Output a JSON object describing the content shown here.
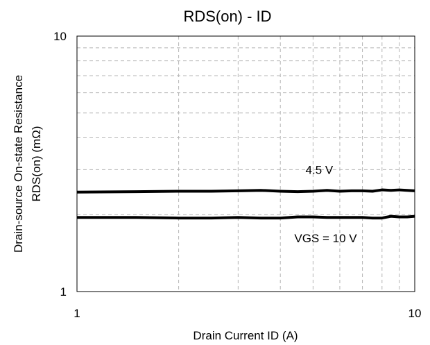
{
  "chart_data": {
    "type": "line",
    "title": "RDS(on) - ID",
    "xlabel": "Drain Current ID (A)",
    "ylabel_line1": "Drain-source On-state Resistance",
    "ylabel_line2": "RDS(on) (mΩ)",
    "xscale": "log",
    "yscale": "log",
    "xlim": [
      1,
      10
    ],
    "ylim": [
      1,
      10
    ],
    "x_tick_labels": [
      "1",
      "10"
    ],
    "y_tick_labels": [
      "1",
      "10"
    ],
    "grid": true,
    "legend": "none",
    "series": [
      {
        "x": [
          1,
          1.5,
          2,
          2.5,
          3,
          3.5,
          4,
          4.5,
          5,
          5.5,
          6,
          6.5,
          7,
          7.5,
          8,
          8.5,
          9,
          9.5,
          10
        ],
        "y": [
          2.45,
          2.46,
          2.47,
          2.47,
          2.48,
          2.49,
          2.47,
          2.46,
          2.47,
          2.49,
          2.47,
          2.48,
          2.48,
          2.47,
          2.5,
          2.49,
          2.5,
          2.49,
          2.48
        ]
      },
      {
        "x": [
          1,
          1.5,
          2,
          2.5,
          3,
          3.5,
          4,
          4.5,
          5,
          5.5,
          6,
          6.5,
          7,
          7.5,
          8,
          8.5,
          9,
          9.5,
          10
        ],
        "y": [
          1.95,
          1.95,
          1.94,
          1.94,
          1.95,
          1.94,
          1.94,
          1.96,
          1.96,
          1.95,
          1.95,
          1.95,
          1.95,
          1.94,
          1.94,
          1.97,
          1.96,
          1.96,
          1.97
        ]
      }
    ],
    "annotations": [
      {
        "text": "4.5 V",
        "x": 4.75,
        "y": 3.0
      },
      {
        "text": "VGS = 10 V",
        "x": 4.4,
        "y": 1.62
      }
    ]
  }
}
